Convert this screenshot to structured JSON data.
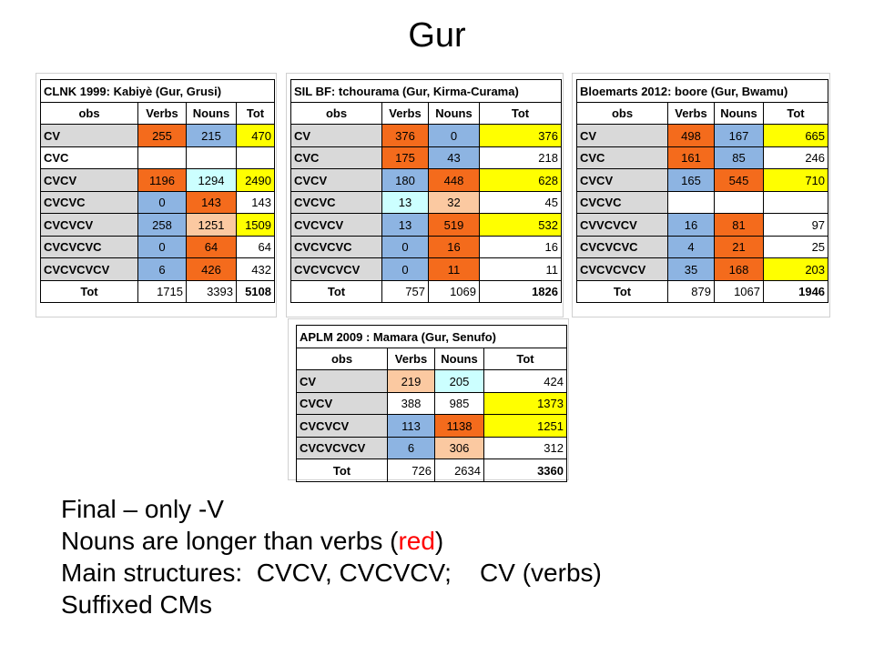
{
  "title": "Gur",
  "colors": {
    "grey": "#d9d9d9",
    "orange": "#f46b1c",
    "blue": "#8db4e2",
    "lightblue": "#ccffff",
    "peach": "#fbc9a1",
    "yellow": "#ffff00",
    "red_text": "#ff0000"
  },
  "tables": {
    "t1": {
      "title": "CLNK 1999: Kabiyè (Gur, Grusi)",
      "headers": [
        "obs",
        "Verbs",
        "Nouns",
        "Tot"
      ],
      "rows": [
        {
          "label": "CV",
          "verbs": "255",
          "nouns": "215",
          "tot": "470"
        },
        {
          "label": "CVC",
          "verbs": "",
          "nouns": "",
          "tot": ""
        },
        {
          "label": "CVCV",
          "verbs": "1196",
          "nouns": "1294",
          "tot": "2490"
        },
        {
          "label": "CVCVC",
          "verbs": "0",
          "nouns": "143",
          "tot": "143"
        },
        {
          "label": "CVCVCV",
          "verbs": "258",
          "nouns": "1251",
          "tot": "1509"
        },
        {
          "label": "CVCVCVC",
          "verbs": "0",
          "nouns": "64",
          "tot": "64"
        },
        {
          "label": "CVCVCVCV",
          "verbs": "6",
          "nouns": "426",
          "tot": "432"
        },
        {
          "label": "Tot",
          "verbs": "1715",
          "nouns": "3393",
          "tot": "5108"
        }
      ]
    },
    "t2": {
      "title": "SIL BF: tchourama (Gur, Kirma-Curama)",
      "headers": [
        "obs",
        "Verbs",
        "Nouns",
        "Tot"
      ],
      "rows": [
        {
          "label": "CV",
          "verbs": "376",
          "nouns": "0",
          "tot": "376"
        },
        {
          "label": "CVC",
          "verbs": "175",
          "nouns": "43",
          "tot": "218"
        },
        {
          "label": "CVCV",
          "verbs": "180",
          "nouns": "448",
          "tot": "628"
        },
        {
          "label": "CVCVC",
          "verbs": "13",
          "nouns": "32",
          "tot": "45"
        },
        {
          "label": "CVCVCV",
          "verbs": "13",
          "nouns": "519",
          "tot": "532"
        },
        {
          "label": "CVCVCVC",
          "verbs": "0",
          "nouns": "16",
          "tot": "16"
        },
        {
          "label": "CVCVCVCV",
          "verbs": "0",
          "nouns": "11",
          "tot": "11"
        },
        {
          "label": "Tot",
          "verbs": "757",
          "nouns": "1069",
          "tot": "1826"
        }
      ]
    },
    "t3": {
      "title": "Bloemarts 2012: boore (Gur, Bwamu)",
      "headers": [
        "obs",
        "Verbs",
        "Nouns",
        "Tot"
      ],
      "rows": [
        {
          "label": "CV",
          "verbs": "498",
          "nouns": "167",
          "tot": "665"
        },
        {
          "label": "CVC",
          "verbs": "161",
          "nouns": "85",
          "tot": "246"
        },
        {
          "label": "CVCV",
          "verbs": "165",
          "nouns": "545",
          "tot": "710"
        },
        {
          "label": "CVCVC",
          "verbs": "",
          "nouns": "",
          "tot": ""
        },
        {
          "label": "CVVCVCV",
          "verbs": "16",
          "nouns": "81",
          "tot": "97"
        },
        {
          "label": "CVCVCVC",
          "verbs": "4",
          "nouns": "21",
          "tot": "25"
        },
        {
          "label": "CVCVCVCV",
          "verbs": "35",
          "nouns": "168",
          "tot": "203"
        },
        {
          "label": "Tot",
          "verbs": "879",
          "nouns": "1067",
          "tot": "1946"
        }
      ]
    },
    "t4": {
      "title": "APLM 2009 : Mamara (Gur, Senufo)",
      "headers": [
        "obs",
        "Verbs",
        "Nouns",
        "Tot"
      ],
      "rows": [
        {
          "label": "CV",
          "verbs": "219",
          "nouns": "205",
          "tot": "424"
        },
        {
          "label": "CVCV",
          "verbs": "388",
          "nouns": "985",
          "tot": "1373"
        },
        {
          "label": "CVCVCV",
          "verbs": "113",
          "nouns": "1138",
          "tot": "1251"
        },
        {
          "label": "CVCVCVCV",
          "verbs": "6",
          "nouns": "306",
          "tot": "312"
        },
        {
          "label": "Tot",
          "verbs": "726",
          "nouns": "2634",
          "tot": "3360"
        }
      ]
    }
  },
  "bullets": {
    "line1": "Final – only -V",
    "line2_pre": "Nouns are longer than verbs (",
    "line2_red": "red",
    "line2_post": ")",
    "line3": "Main structures:  CVCV, CVCVCV;    CV (verbs)",
    "line4": "Suffixed CMs"
  }
}
